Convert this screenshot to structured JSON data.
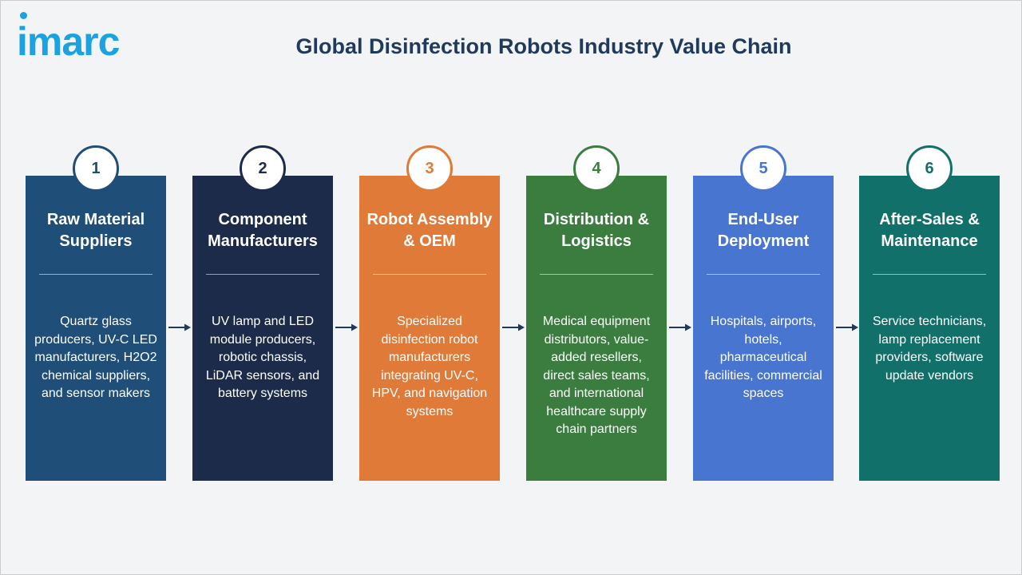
{
  "header": {
    "logo_text": "imarc",
    "title": "Global Disinfection Robots Industry Value Chain"
  },
  "stages": [
    {
      "number": "1",
      "title": "Raw Material Suppliers",
      "description": "Quartz glass producers, UV-C LED manufacturers, H2O2 chemical suppliers, and sensor makers",
      "color": "#1f4e79",
      "number_color": "#1f4e79"
    },
    {
      "number": "2",
      "title": "Component Manufacturers",
      "description": "UV lamp and LED module producers, robotic chassis, LiDAR sensors, and battery systems",
      "color": "#1c2b4a",
      "number_color": "#1c2b4a"
    },
    {
      "number": "3",
      "title": "Robot Assembly & OEM",
      "description": "Specialized disinfection robot manufacturers integrating UV-C, HPV, and navigation systems",
      "color": "#e07a38",
      "number_color": "#e07a38"
    },
    {
      "number": "4",
      "title": "Distribution & Logistics",
      "description": "Medical equipment distributors, value-added resellers, direct sales teams, and international healthcare supply chain partners",
      "color": "#3a7d3f",
      "number_color": "#3a7d3f"
    },
    {
      "number": "5",
      "title": "End-User Deployment",
      "description": "Hospitals, airports, hotels, pharmaceutical facilities, commercial spaces",
      "color": "#4775cf",
      "number_color": "#4775cf"
    },
    {
      "number": "6",
      "title": "After-Sales & Maintenance",
      "description": "Service technicians, lamp replacement providers, software update vendors",
      "color": "#12706b",
      "number_color": "#12706b"
    }
  ],
  "arrow_color": "#1f3a5a"
}
